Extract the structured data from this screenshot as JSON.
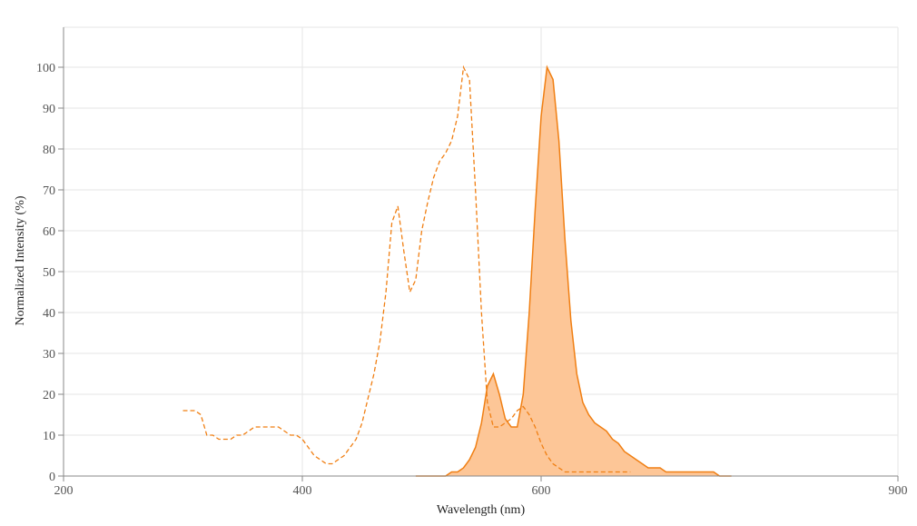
{
  "chart_data": {
    "type": "area",
    "xlabel": "Wavelength (nm)",
    "ylabel": "Normalized Intensity (%)",
    "xlim": [
      200,
      900
    ],
    "ylim": [
      0,
      110
    ],
    "x_ticks": [
      200,
      400,
      600,
      900
    ],
    "y_ticks": [
      0,
      10,
      20,
      30,
      40,
      50,
      60,
      70,
      80,
      90,
      100
    ],
    "grid": true,
    "legend": "none",
    "colors": {
      "line": "#f07f13",
      "fill": "#fdc697",
      "grid": "#e6e6e6",
      "axis": "#888888"
    },
    "series": [
      {
        "style": "dashed",
        "filled": false,
        "x": [
          300,
          305,
          310,
          315,
          320,
          325,
          330,
          335,
          340,
          345,
          350,
          355,
          360,
          365,
          370,
          375,
          380,
          385,
          390,
          395,
          400,
          405,
          410,
          415,
          420,
          425,
          430,
          435,
          440,
          445,
          450,
          455,
          460,
          465,
          470,
          475,
          480,
          485,
          490,
          495,
          500,
          505,
          510,
          515,
          520,
          525,
          530,
          535,
          540,
          545,
          550,
          555,
          560,
          565,
          570,
          575,
          580,
          585,
          590,
          595,
          600,
          605,
          610,
          615,
          620,
          625,
          630,
          635,
          640,
          645,
          650,
          655,
          660,
          665,
          670,
          675
        ],
        "y": [
          16,
          16,
          16,
          15,
          10,
          10,
          9,
          9,
          9,
          10,
          10,
          11,
          12,
          12,
          12,
          12,
          12,
          11,
          10,
          10,
          9,
          7,
          5,
          4,
          3,
          3,
          4,
          5,
          7,
          9,
          13,
          19,
          25,
          33,
          45,
          62,
          66,
          55,
          45,
          48,
          60,
          67,
          73,
          77,
          79,
          82,
          88,
          100,
          97,
          70,
          40,
          18,
          12,
          12,
          13,
          14,
          16,
          17,
          15,
          12,
          8,
          5,
          3,
          2,
          1,
          1,
          1,
          1,
          1,
          1,
          1,
          1,
          1,
          1,
          1,
          1
        ]
      },
      {
        "style": "solid",
        "filled": true,
        "x": [
          495,
          500,
          505,
          510,
          515,
          520,
          525,
          530,
          535,
          540,
          545,
          550,
          555,
          560,
          565,
          570,
          575,
          580,
          585,
          590,
          595,
          600,
          605,
          610,
          615,
          620,
          625,
          630,
          635,
          640,
          645,
          650,
          655,
          660,
          665,
          670,
          675,
          680,
          685,
          690,
          695,
          700,
          705,
          710,
          715,
          720,
          725,
          730,
          735,
          740,
          745,
          750,
          755,
          760
        ],
        "y": [
          0,
          0,
          0,
          0,
          0,
          0,
          1,
          1,
          2,
          4,
          7,
          13,
          22,
          25,
          20,
          14,
          12,
          12,
          20,
          40,
          65,
          88,
          100,
          97,
          82,
          58,
          38,
          25,
          18,
          15,
          13,
          12,
          11,
          9,
          8,
          6,
          5,
          4,
          3,
          2,
          2,
          2,
          1,
          1,
          1,
          1,
          1,
          1,
          1,
          1,
          1,
          0,
          0,
          0
        ]
      }
    ]
  }
}
